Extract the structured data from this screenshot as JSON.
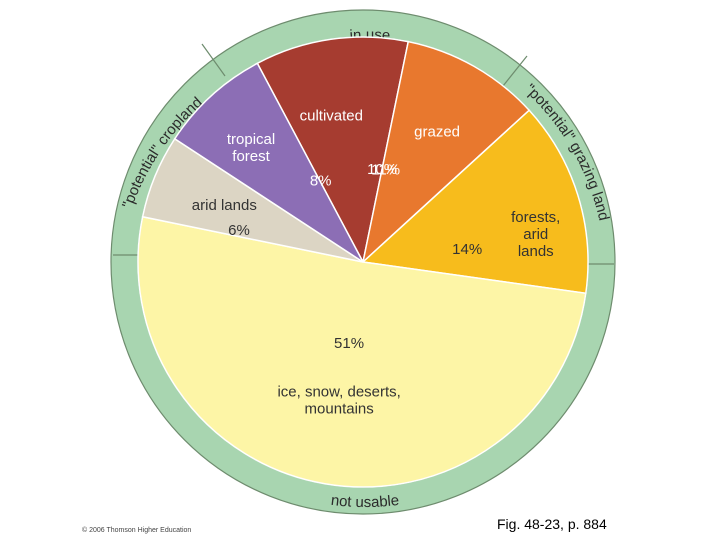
{
  "chart_data": {
    "type": "pie",
    "title": "",
    "slices": [
      {
        "label_lines": [
          "cultivated"
        ],
        "pct_label": "11%",
        "value": 11,
        "color": "#a63c30",
        "text_color": "#ffffff"
      },
      {
        "label_lines": [
          "grazed"
        ],
        "pct_label": "10%",
        "value": 10,
        "color": "#e8782e",
        "text_color": "#ffffff"
      },
      {
        "label_lines": [
          "forests,",
          "arid",
          "lands"
        ],
        "pct_label": "14%",
        "value": 14,
        "color": "#f7bc1c",
        "text_color": "#333333"
      },
      {
        "label_lines": [
          "ice, snow, deserts,",
          "mountains"
        ],
        "pct_label": "51%",
        "value": 51,
        "color": "#fdf5a6",
        "text_color": "#333333"
      },
      {
        "label_lines": [
          "arid lands"
        ],
        "pct_label": "6%",
        "value": 6,
        "color": "#dcd5c4",
        "text_color": "#333333"
      },
      {
        "label_lines": [
          "tropical",
          "forest"
        ],
        "pct_label": "8%",
        "value": 8,
        "color": "#8c6eb5",
        "text_color": "#ffffff"
      }
    ],
    "outer_ring": [
      {
        "label": "in use",
        "color": "#a8d5b0"
      },
      {
        "label": "\"potential\" grazing land",
        "color": "#a8d5b0"
      },
      {
        "label": "not usable",
        "color": "#a8d5b0"
      },
      {
        "label": "\"potential\" cropland",
        "color": "#a8d5b0"
      }
    ]
  },
  "caption": "Fig. 48-23, p. 884",
  "copyright": "© 2006 Thomson Higher Education"
}
